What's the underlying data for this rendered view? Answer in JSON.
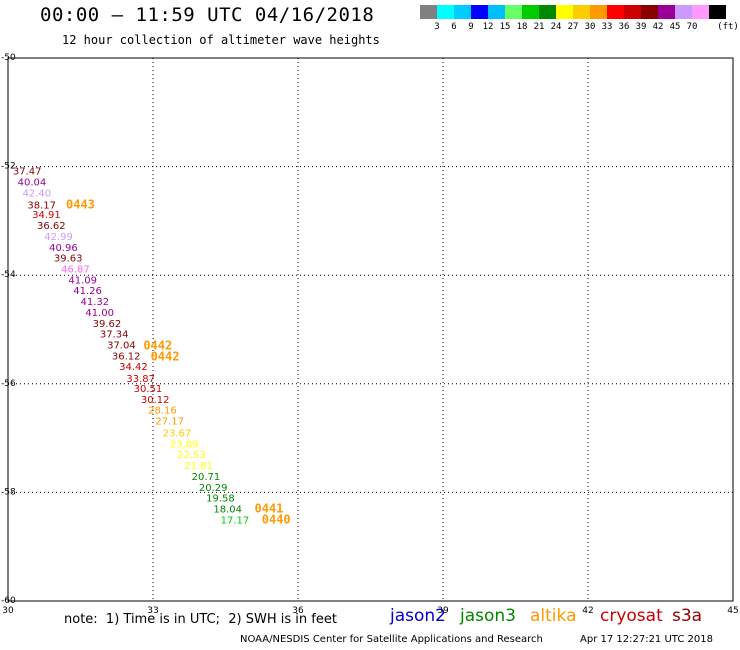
{
  "header": {
    "title": "00:00 – 11:59 UTC 04/16/2018",
    "subtitle": "12 hour collection of altimeter wave heights"
  },
  "color_scale": {
    "labels": [
      "3",
      "6",
      "9",
      "12",
      "15",
      "18",
      "21",
      "24",
      "27",
      "30",
      "33",
      "36",
      "39",
      "42",
      "45",
      "70"
    ],
    "unit": "(ft)",
    "colors": [
      "#808080",
      "#00ffff",
      "#00ccff",
      "#0000ff",
      "#00bfff",
      "#66ff66",
      "#00cc00",
      "#008800",
      "#ffff00",
      "#ffcc00",
      "#ff9900",
      "#ff0000",
      "#cc0000",
      "#880000",
      "#990099",
      "#cc99ff",
      "#ff99ff",
      "#000000"
    ]
  },
  "chart_data": {
    "type": "scatter",
    "title": "12 hour collection of altimeter wave heights",
    "xlim": [
      30,
      45
    ],
    "ylim": [
      -60,
      -50
    ],
    "x_ticks": [
      "30",
      "33",
      "36",
      "39",
      "42",
      "45"
    ],
    "y_ticks": [
      "-50",
      "-52",
      "-54",
      "-56",
      "-58",
      "-60"
    ],
    "grid": true,
    "points": [
      {
        "x": 30.1,
        "y": -52.15,
        "label": "37.47",
        "color": "#880000"
      },
      {
        "x": 30.2,
        "y": -52.35,
        "label": "40.04",
        "color": "#990099"
      },
      {
        "x": 30.3,
        "y": -52.55,
        "label": "42.40",
        "color": "#cc99ff"
      },
      {
        "x": 30.4,
        "y": -52.77,
        "label": "38.17",
        "color": "#880000"
      },
      {
        "x": 30.5,
        "y": -52.95,
        "label": "34.91",
        "color": "#cc0000"
      },
      {
        "x": 30.6,
        "y": -53.15,
        "label": "36.62",
        "color": "#880000"
      },
      {
        "x": 30.75,
        "y": -53.35,
        "label": "42.99",
        "color": "#cc99ff"
      },
      {
        "x": 30.85,
        "y": -53.55,
        "label": "40.96",
        "color": "#990099"
      },
      {
        "x": 30.95,
        "y": -53.75,
        "label": "39.63",
        "color": "#880000"
      },
      {
        "x": 31.1,
        "y": -53.95,
        "label": "46.87",
        "color": "#ff66ff"
      },
      {
        "x": 31.25,
        "y": -54.15,
        "label": "41.09",
        "color": "#990099"
      },
      {
        "x": 31.35,
        "y": -54.35,
        "label": "41.26",
        "color": "#990099"
      },
      {
        "x": 31.5,
        "y": -54.55,
        "label": "41.32",
        "color": "#990099"
      },
      {
        "x": 31.6,
        "y": -54.75,
        "label": "41.00",
        "color": "#990099"
      },
      {
        "x": 31.75,
        "y": -54.95,
        "label": "39.62",
        "color": "#880000"
      },
      {
        "x": 31.9,
        "y": -55.15,
        "label": "37.34",
        "color": "#880000"
      },
      {
        "x": 32.05,
        "y": -55.35,
        "label": "37.04",
        "color": "#880000"
      },
      {
        "x": 32.15,
        "y": -55.55,
        "label": "36.12",
        "color": "#880000"
      },
      {
        "x": 32.3,
        "y": -55.75,
        "label": "34.42",
        "color": "#cc0000"
      },
      {
        "x": 32.45,
        "y": -55.97,
        "label": "33.87",
        "color": "#cc0000"
      },
      {
        "x": 32.6,
        "y": -56.15,
        "label": "30.51",
        "color": "#cc0000"
      },
      {
        "x": 32.75,
        "y": -56.35,
        "label": "30.12",
        "color": "#cc0000"
      },
      {
        "x": 32.9,
        "y": -56.55,
        "label": "28.16",
        "color": "#ff9900"
      },
      {
        "x": 33.05,
        "y": -56.75,
        "label": "27.17",
        "color": "#ff9900"
      },
      {
        "x": 33.2,
        "y": -56.97,
        "label": "23.67",
        "color": "#ffcc00"
      },
      {
        "x": 33.35,
        "y": -57.17,
        "label": "23.89",
        "color": "#ffff00"
      },
      {
        "x": 33.5,
        "y": -57.37,
        "label": "22.53",
        "color": "#ffff00"
      },
      {
        "x": 33.65,
        "y": -57.57,
        "label": "21.81",
        "color": "#ffff00"
      },
      {
        "x": 33.8,
        "y": -57.77,
        "label": "20.71",
        "color": "#008800"
      },
      {
        "x": 33.95,
        "y": -57.97,
        "label": "20.29",
        "color": "#008800"
      },
      {
        "x": 34.1,
        "y": -58.17,
        "label": "19.58",
        "color": "#008800"
      },
      {
        "x": 34.25,
        "y": -58.37,
        "label": "18.04",
        "color": "#008800"
      },
      {
        "x": 34.4,
        "y": -58.57,
        "label": "17.17",
        "color": "#00cc00"
      }
    ],
    "pass_labels": [
      {
        "x": 31.2,
        "y": -52.77,
        "label": "0443",
        "color": "#ff9900"
      },
      {
        "x": 32.8,
        "y": -55.37,
        "label": "0442",
        "color": "#ff9900"
      },
      {
        "x": 32.95,
        "y": -55.57,
        "label": "0442",
        "color": "#ff9900"
      },
      {
        "x": 35.1,
        "y": -58.37,
        "label": "0441",
        "color": "#ff9900"
      },
      {
        "x": 35.25,
        "y": -58.57,
        "label": "0440",
        "color": "#ff9900"
      }
    ]
  },
  "footer": {
    "note": "note:  1) Time is in UTC;  2) SWH is in feet",
    "satellites": [
      {
        "name": "jason2",
        "color": "#0000cc"
      },
      {
        "name": "jason3",
        "color": "#008800"
      },
      {
        "name": "altika",
        "color": "#ff9900"
      },
      {
        "name": "cryosat",
        "color": "#cc0000"
      },
      {
        "name": "s3a",
        "color": "#990000"
      }
    ],
    "credit": "NOAA/NESDIS Center for Satellite Applications and Research",
    "timestamp": "Apr 17 12:27:21 UTC 2018"
  }
}
